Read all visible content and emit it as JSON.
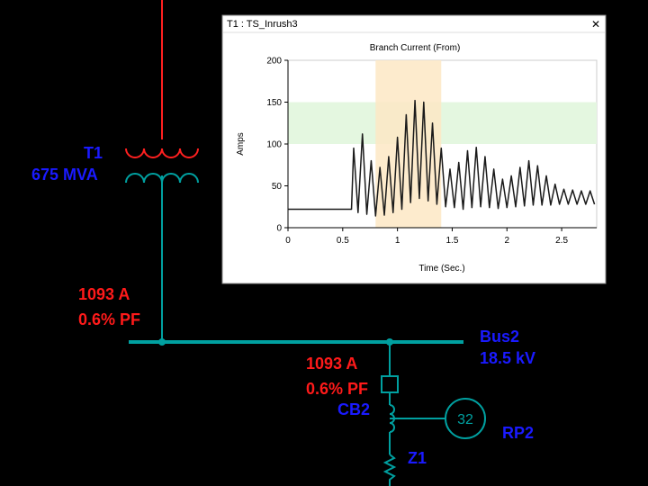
{
  "diagram": {
    "transformer": {
      "name": "T1",
      "rating": "675 MVA"
    },
    "flow_upper": {
      "current": "1093 A",
      "pf": "0.6% PF"
    },
    "bus": {
      "name": "Bus2",
      "voltage": "18.5 kV"
    },
    "flow_lower": {
      "current": "1093 A",
      "pf": "0.6% PF"
    },
    "breaker": "CB2",
    "relay": {
      "number": "32",
      "name": "RP2"
    },
    "impedance": "Z1"
  },
  "window": {
    "title": "T1 : TS_Inrush3"
  },
  "chart_data": {
    "type": "line",
    "title": "Branch Current (From)",
    "x_label": "Time (Sec.)",
    "y_label": "Amps",
    "color": "#1a1a1a",
    "x": [
      0,
      0.58,
      0.6,
      0.64,
      0.68,
      0.72,
      0.76,
      0.8,
      0.84,
      0.88,
      0.92,
      0.96,
      1.0,
      1.04,
      1.08,
      1.12,
      1.16,
      1.2,
      1.24,
      1.28,
      1.32,
      1.36,
      1.4,
      1.44,
      1.48,
      1.52,
      1.56,
      1.6,
      1.64,
      1.68,
      1.72,
      1.76,
      1.8,
      1.84,
      1.88,
      1.92,
      1.96,
      2.0,
      2.04,
      2.08,
      2.12,
      2.16,
      2.2,
      2.24,
      2.28,
      2.32,
      2.36,
      2.4,
      2.44,
      2.48,
      2.52,
      2.56,
      2.6,
      2.64,
      2.68,
      2.72,
      2.76,
      2.8
    ],
    "values": [
      22,
      22,
      95,
      18,
      112,
      16,
      80,
      14,
      72,
      15,
      85,
      18,
      108,
      22,
      135,
      30,
      152,
      35,
      150,
      32,
      125,
      28,
      95,
      25,
      70,
      24,
      78,
      22,
      92,
      24,
      96,
      25,
      85,
      24,
      70,
      23,
      58,
      24,
      62,
      25,
      72,
      26,
      80,
      27,
      74,
      27,
      62,
      27,
      52,
      28,
      46,
      28,
      45,
      28,
      44,
      28,
      44,
      28
    ],
    "highlight_x": [
      0.8,
      1.4
    ],
    "highlight_x_color": "#fde8c4",
    "highlight_y": [
      100,
      150
    ],
    "highlight_y_color": "#e4f7e0",
    "xlim": [
      0,
      2.82
    ],
    "xticks": [
      0,
      0.5,
      1,
      1.5,
      2,
      2.5
    ],
    "ylim": [
      0,
      200
    ],
    "yticks": [
      0,
      50,
      100,
      150,
      200
    ]
  }
}
